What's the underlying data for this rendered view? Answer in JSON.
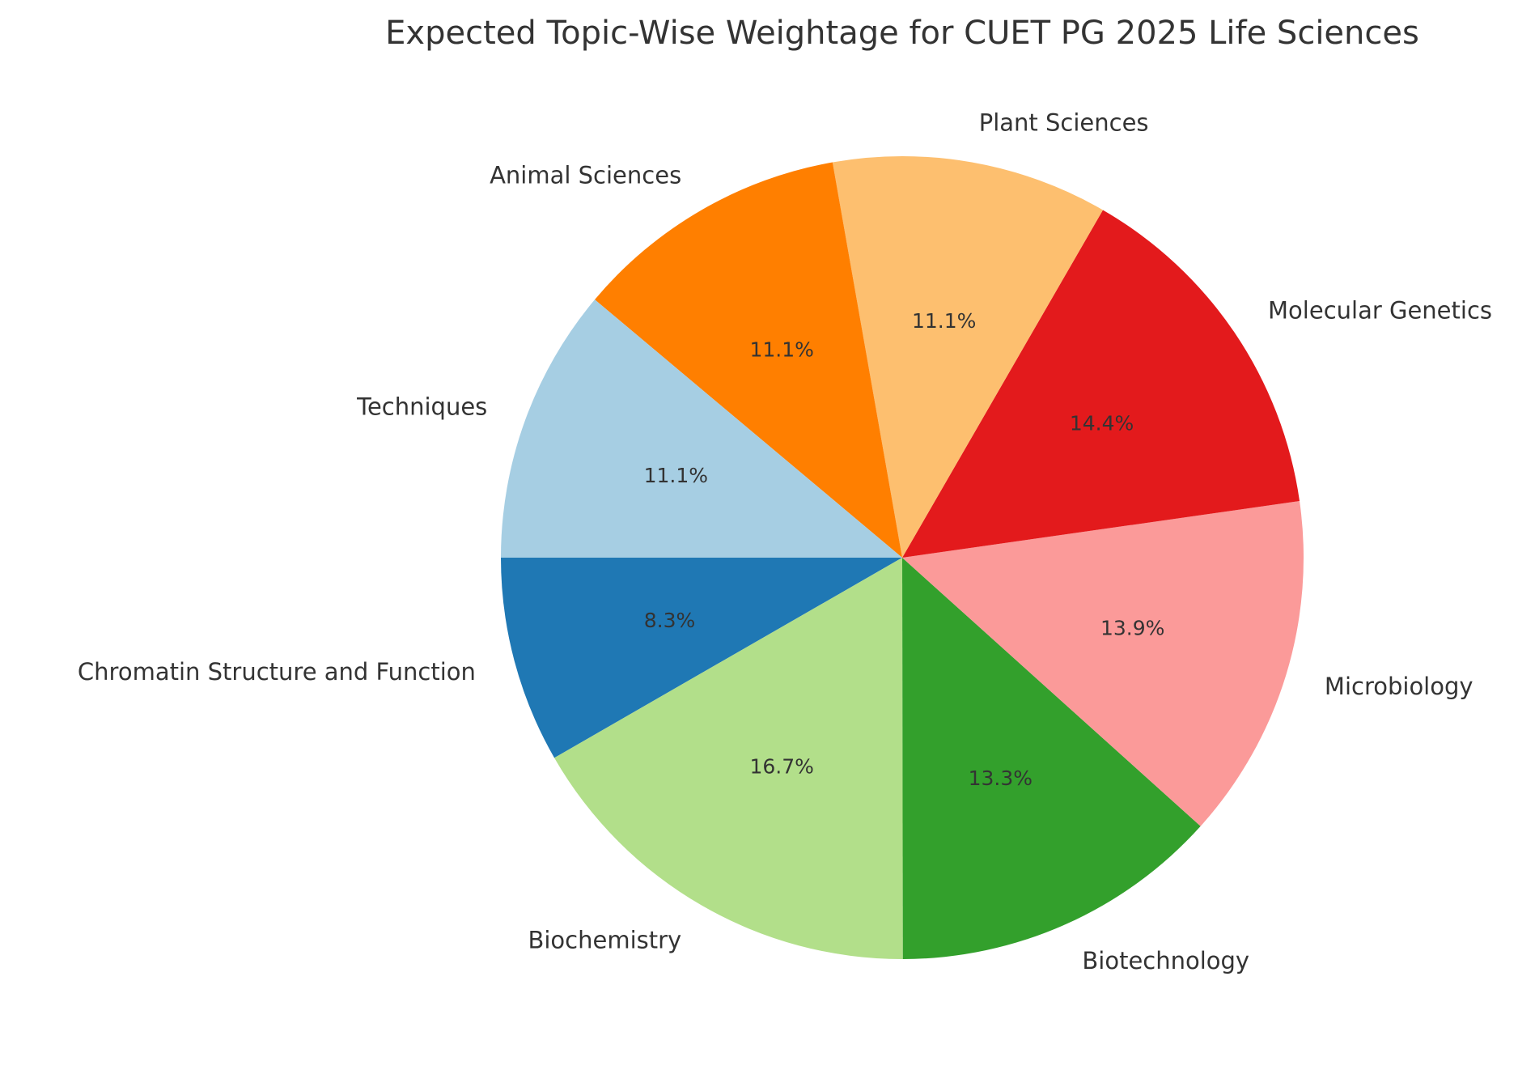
{
  "chart_data": {
    "type": "pie",
    "title": "Expected Topic-Wise Weightage for CUET PG 2025 Life Sciences",
    "start_angle_deg": 180,
    "direction": "counterclockwise",
    "categories": [
      "Chromatin Structure and Function",
      "Biochemistry",
      "Biotechnology",
      "Microbiology",
      "Molecular Genetics",
      "Plant Sciences",
      "Animal Sciences",
      "Techniques"
    ],
    "values": [
      8.3,
      16.7,
      13.3,
      13.9,
      14.4,
      11.1,
      11.1,
      11.1
    ],
    "value_labels": [
      "8.3%",
      "16.7%",
      "13.3%",
      "13.9%",
      "14.4%",
      "11.1%",
      "11.1%",
      "11.1%"
    ],
    "colors": [
      "#1f78b4",
      "#b2df8a",
      "#33a02c",
      "#fb9a99",
      "#e31a1c",
      "#fdbf6f",
      "#ff7f00",
      "#a6cee3"
    ]
  }
}
